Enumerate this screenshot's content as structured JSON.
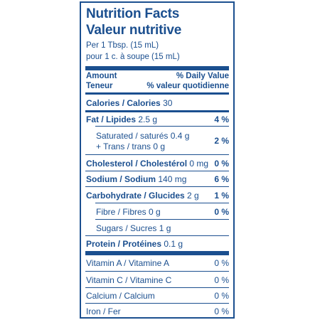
{
  "title_en": "Nutrition Facts",
  "title_fr": "Valeur nutritive",
  "serving_en": "Per 1 Tbsp. (15 mL)",
  "serving_fr": "pour 1 c. à soupe (15 mL)",
  "header": {
    "amount": "Amount",
    "teneur": "Teneur",
    "dv_en": "% Daily Value",
    "dv_fr": "% valeur quotidienne"
  },
  "calories": {
    "label": "Calories / Calories",
    "value": "30"
  },
  "fat": {
    "label": "Fat / Lipides",
    "value": "2.5 g",
    "pct": "4 %"
  },
  "saturated": {
    "label": "Saturated / saturés 0.4 g",
    "trans": "+ Trans / trans 0 g",
    "pct": "2 %"
  },
  "cholesterol": {
    "label": "Cholesterol / Cholestérol",
    "value": "0 mg",
    "pct": "0 %"
  },
  "sodium": {
    "label": "Sodium / Sodium",
    "value": "140 mg",
    "pct": "6 %"
  },
  "carbohydrate": {
    "label": "Carbohydrate / Glucides",
    "value": "2 g",
    "pct": "1 %"
  },
  "fibre": {
    "label": "Fibre / Fibres 0 g",
    "pct": "0 %"
  },
  "sugars": {
    "label": "Sugars / Sucres 1 g"
  },
  "protein": {
    "label": "Protein / Protéines",
    "value": "0.1 g"
  },
  "vitamin_a": {
    "label": "Vitamin A / Vitamine A",
    "pct": "0 %"
  },
  "vitamin_c": {
    "label": "Vitamin C / Vitamine C",
    "pct": "0 %"
  },
  "calcium": {
    "label": "Calcium / Calcium",
    "pct": "0 %"
  },
  "iron": {
    "label": "Iron / Fer",
    "pct": "0 %"
  },
  "colors": {
    "ink": "#1b4f8f",
    "background": "#ffffff"
  }
}
